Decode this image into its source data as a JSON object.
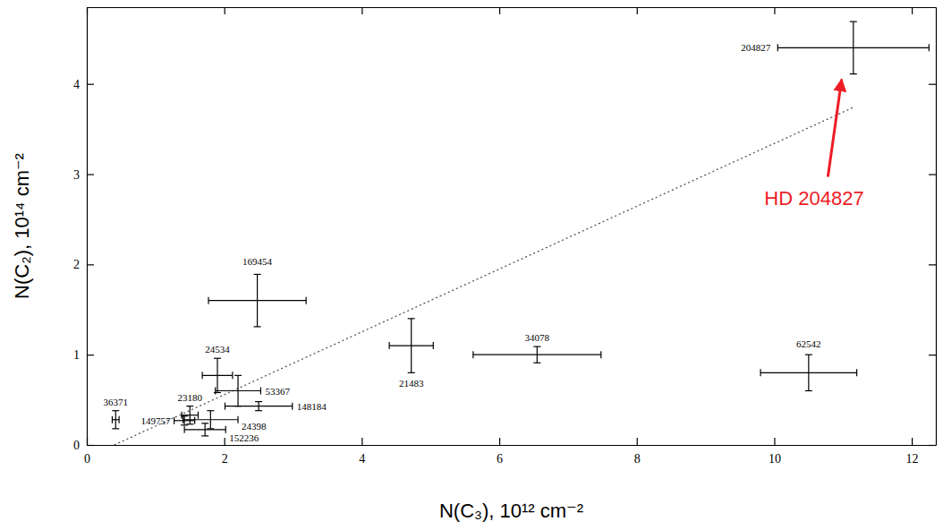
{
  "chart_data": {
    "type": "scatter",
    "x_label": "N(C₃), 10¹² cm⁻²",
    "y_label": "N(C₂), 10¹⁴ cm⁻²",
    "xlim": [
      0,
      12.35
    ],
    "ylim": [
      0,
      4.85
    ],
    "xticks": [
      0,
      2,
      4,
      6,
      8,
      10,
      12
    ],
    "yticks": [
      0,
      1,
      2,
      3,
      4
    ],
    "series": [
      {
        "color": "#000000",
        "marker": "errorbar",
        "labels": [
          "204827",
          "169454",
          "24534",
          "53367",
          "23180",
          "149757",
          "24398",
          "152236",
          "148184",
          "36371",
          "21483",
          "34078",
          "62542"
        ],
        "x": [
          11.15,
          2.48,
          1.9,
          2.2,
          1.5,
          1.42,
          1.8,
          1.72,
          2.5,
          0.42,
          4.72,
          6.55,
          10.5
        ],
        "xerr": [
          1.1,
          0.71,
          0.22,
          0.33,
          0.12,
          0.15,
          0.4,
          0.3,
          0.49,
          0.05,
          0.32,
          0.93,
          0.7
        ],
        "values": [
          4.4,
          1.6,
          0.77,
          0.6,
          0.33,
          0.27,
          0.28,
          0.17,
          0.43,
          0.28,
          1.1,
          1.0,
          0.8
        ],
        "yerr": [
          0.29,
          0.29,
          0.19,
          0.17,
          0.1,
          0.05,
          0.1,
          0.07,
          0.05,
          0.1,
          0.3,
          0.09,
          0.2
        ]
      }
    ],
    "fit_line": {
      "x": [
        0.4,
        11.15
      ],
      "y": [
        0,
        3.74
      ],
      "line_style": "dotted",
      "color": "#555555"
    },
    "annotations": [
      {
        "text": "HD 204827",
        "x": 10.58,
        "y": 2.66,
        "arrow_x": [
          10.78,
          10.98
        ],
        "arrow_y": [
          2.97,
          4.05
        ],
        "color": "#ee1c25"
      }
    ]
  }
}
